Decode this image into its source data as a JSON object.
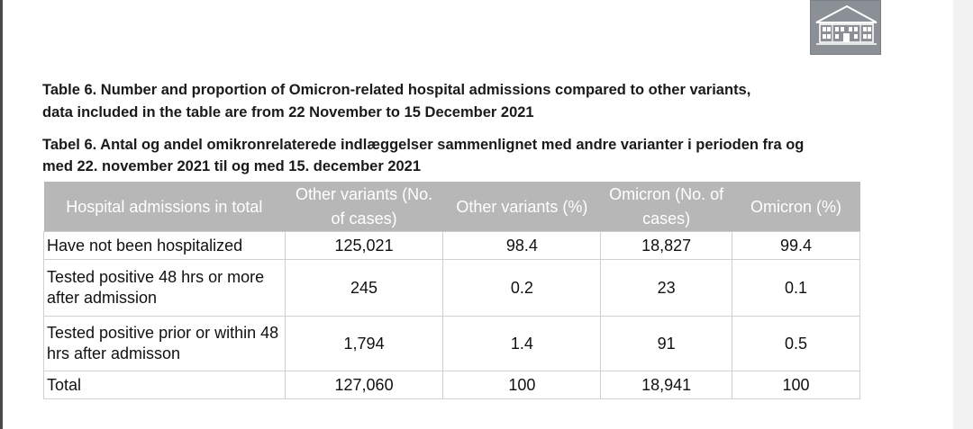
{
  "caption_en": "Table 6. Number and proportion of Omicron-related hospital admissions compared to other variants, data included in the table are from 22 November to 15 December 2021",
  "caption_da": "Tabel 6. Antal og andel omikronrelaterede indlæggelser sammenlignet med andre varianter i perioden fra og med 22. november 2021 til og med 15. december 2021",
  "table": {
    "headers": [
      "Hospital admissions in total",
      "Other variants (No. of cases)",
      "Other variants (%)",
      "Omicron (No. of cases)",
      "Omicron (%)"
    ],
    "rows": [
      [
        "Have not been hospitalized",
        "125,021",
        "98.4",
        "18,827",
        "99.4"
      ],
      [
        "Tested positive 48 hrs or more after admission",
        "245",
        "0.2",
        "23",
        "0.1"
      ],
      [
        "Tested positive prior or within 48 hrs after admisson",
        "1,794",
        "1.4",
        "91",
        "0.5"
      ],
      [
        "Total",
        "127,060",
        "100",
        "18,941",
        "100"
      ]
    ]
  },
  "logo_icon": "building-logo-icon",
  "colors": {
    "header_bg": "#b7b7b7",
    "logo_bg": "#8a9096"
  }
}
